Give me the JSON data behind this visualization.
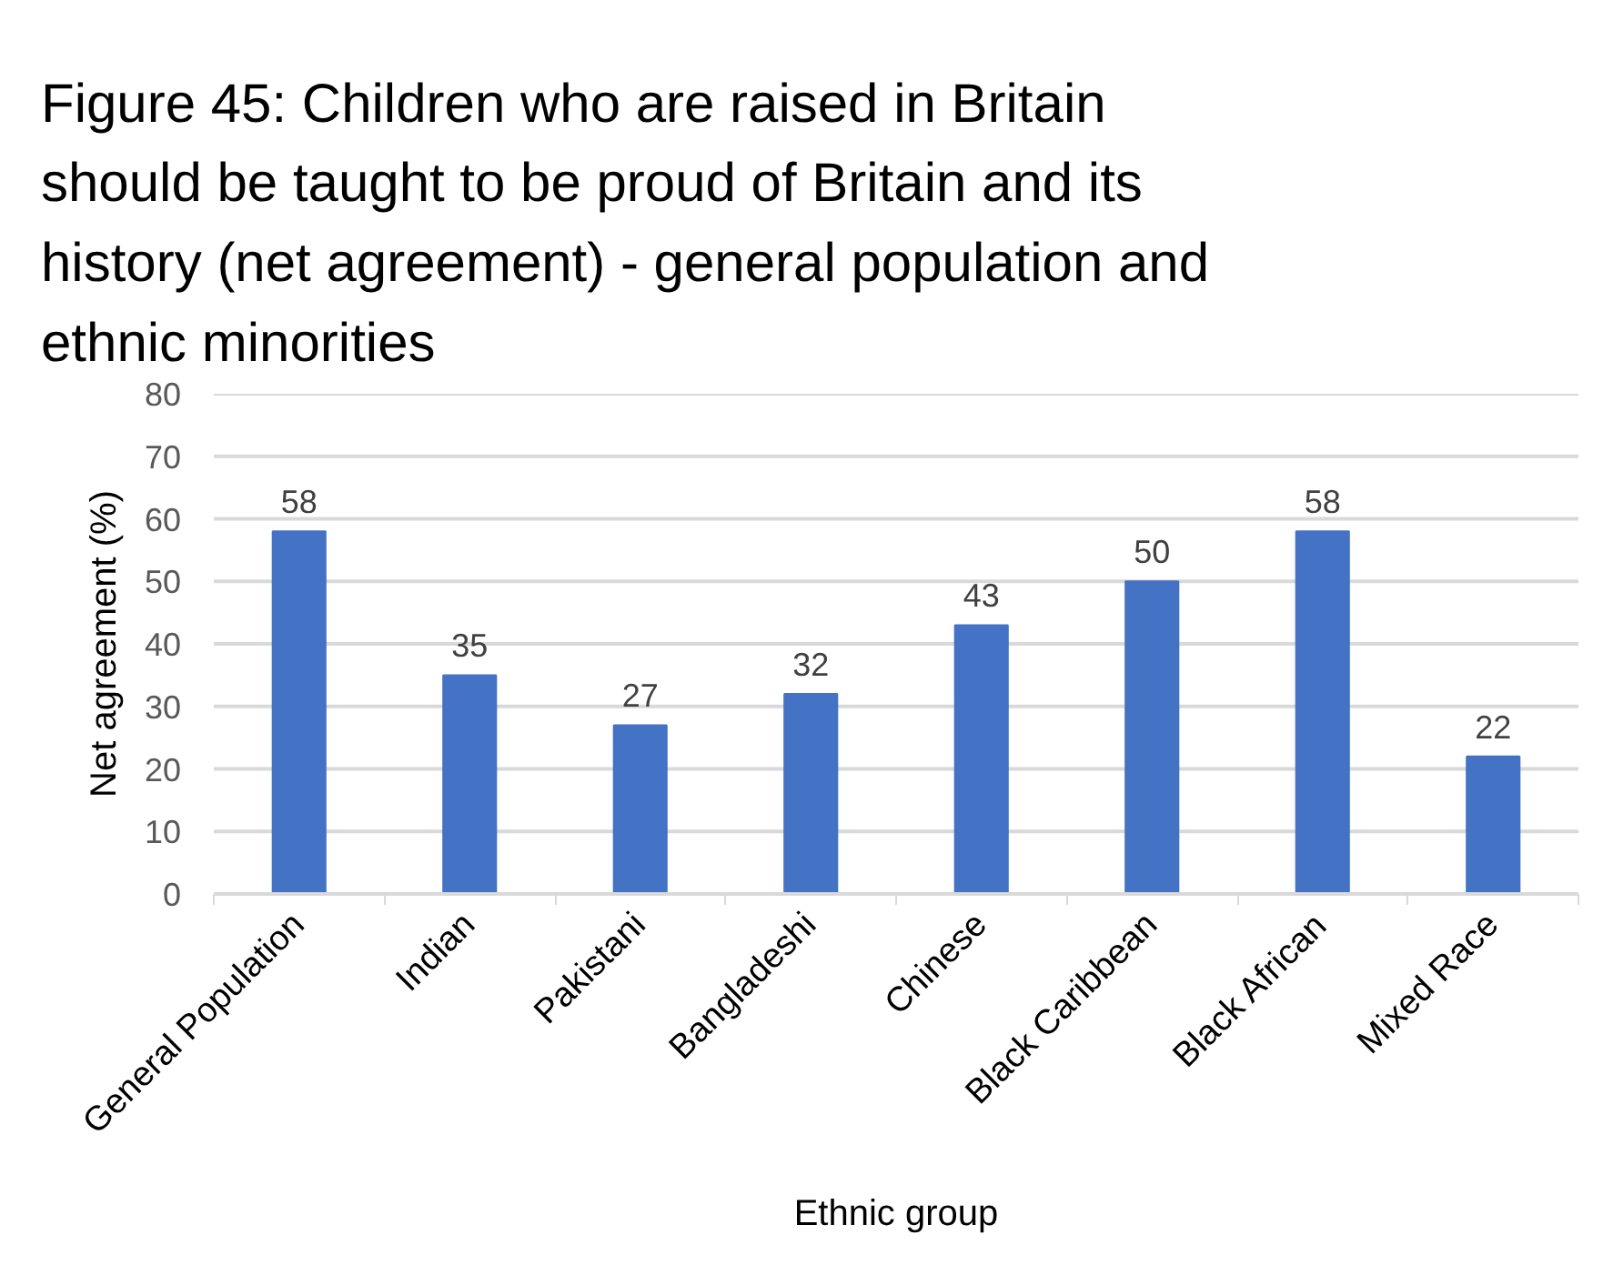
{
  "chart_data": {
    "type": "bar",
    "title": "Figure 45: Children who are raised in Britain should be taught to be proud of Britain and its history (net agreement) - general population and ethnic minorities",
    "xlabel": "Ethnic group",
    "ylabel": "Net agreement (%)",
    "categories": [
      "General Population",
      "Indian",
      "Pakistani",
      "Bangladeshi",
      "Chinese",
      "Black Caribbean",
      "Black African",
      "Mixed Race"
    ],
    "values": [
      58,
      35,
      27,
      32,
      43,
      50,
      58,
      22
    ],
    "color": "#4472c4",
    "ylim": [
      0,
      80
    ],
    "yticks": [
      0,
      10,
      20,
      30,
      40,
      50,
      60,
      70,
      80
    ],
    "grid": "y",
    "data_labels": true
  }
}
